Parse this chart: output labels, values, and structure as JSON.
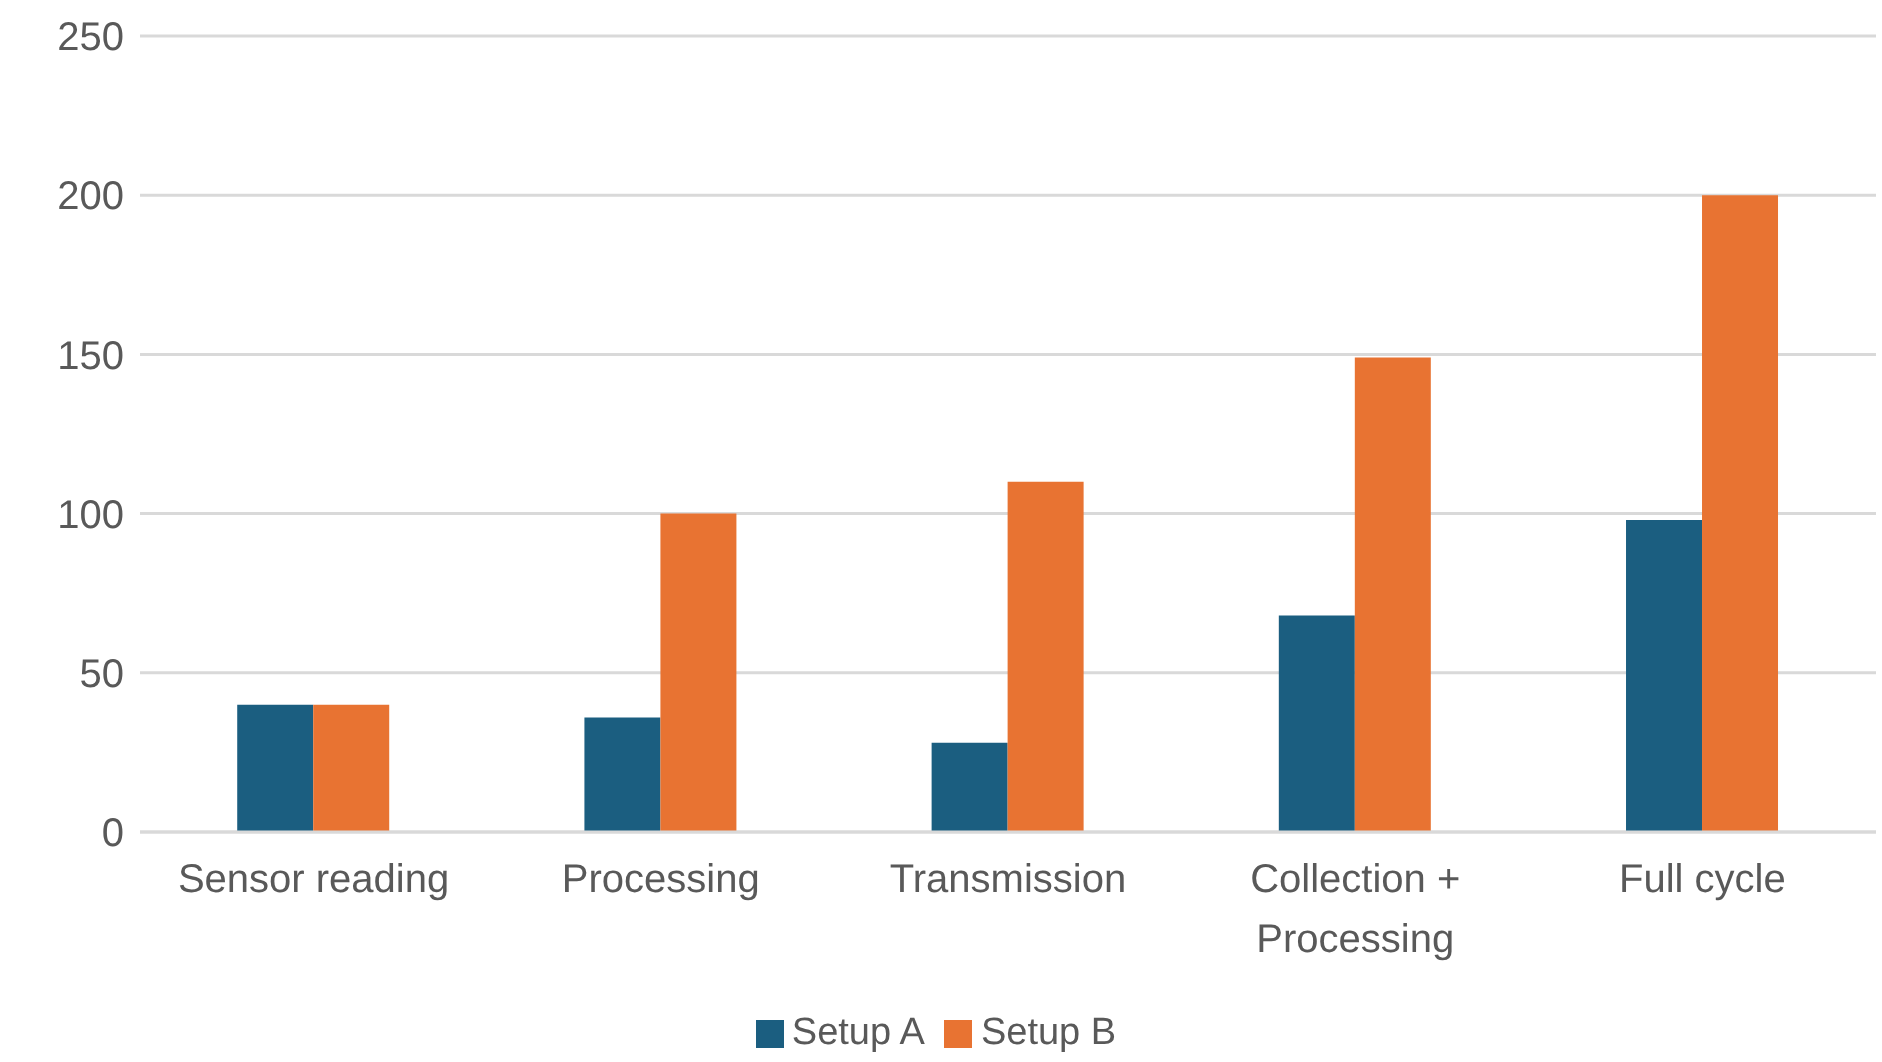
{
  "chart_data": {
    "type": "bar",
    "categories": [
      "Sensor reading",
      "Processing",
      "Transmission",
      "Collection + Processing",
      "Full cycle"
    ],
    "series": [
      {
        "name": "Setup A",
        "color": "#1b5e80",
        "values": [
          40,
          36,
          28,
          68,
          98
        ]
      },
      {
        "name": "Setup B",
        "color": "#e87332",
        "values": [
          40,
          100,
          110,
          149,
          200
        ]
      }
    ],
    "ylim": [
      0,
      250
    ],
    "yticks": [
      0,
      50,
      100,
      150,
      200,
      250
    ],
    "grid": "y",
    "legend": "bottom"
  }
}
